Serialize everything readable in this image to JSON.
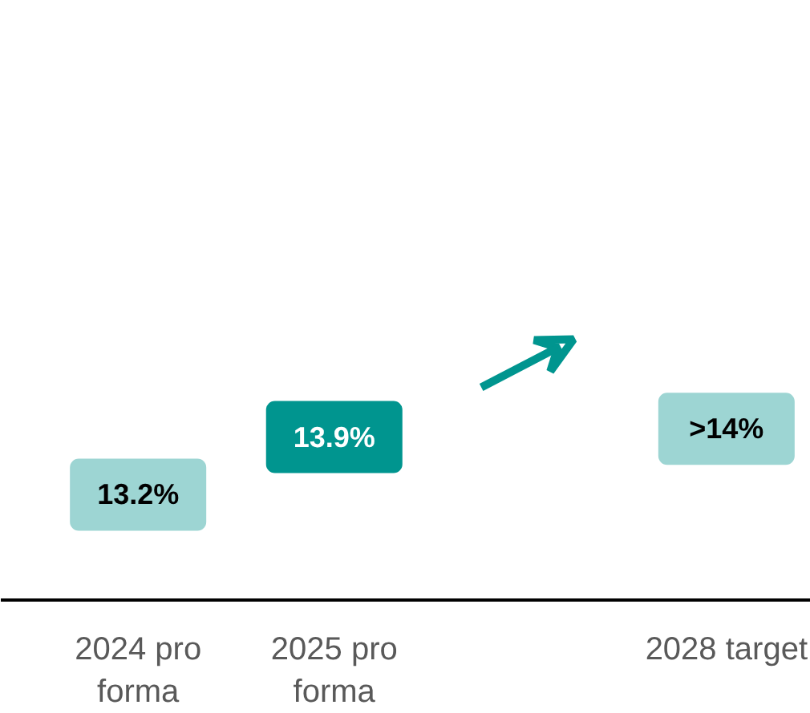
{
  "chart_data": {
    "type": "other",
    "categories": [
      "2024 pro forma",
      "2025 pro forma",
      null,
      "2028 target"
    ],
    "values": [
      13.2,
      13.9,
      null,
      14
    ],
    "value_labels": [
      "13.2%",
      "13.9%",
      null,
      ">14%"
    ],
    "colors": [
      "#9dd5d3",
      "#00958f",
      null,
      "#9dd5d3"
    ]
  }
}
